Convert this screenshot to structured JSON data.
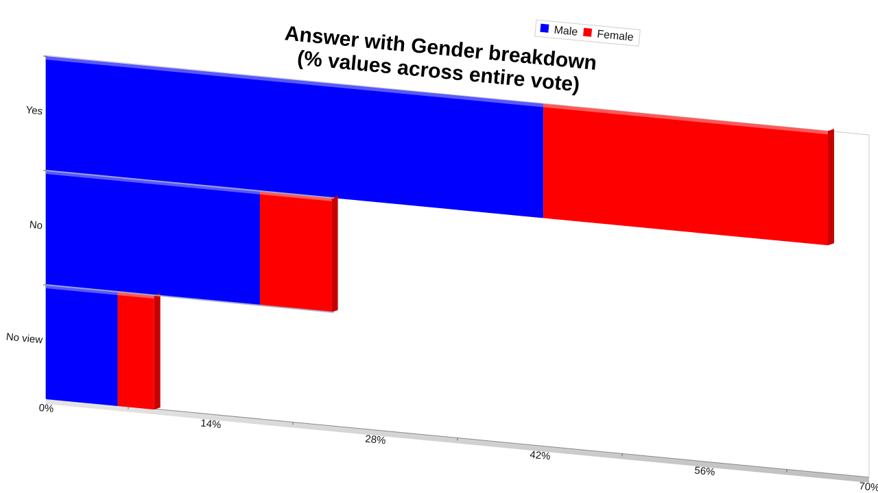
{
  "chart_data": {
    "type": "bar",
    "orientation": "horizontal",
    "stacked": true,
    "title_lines": [
      "Answer with Gender breakdown",
      "(% values across entire vote)"
    ],
    "categories": [
      "Yes",
      "No",
      "No view"
    ],
    "series": [
      {
        "name": "Male",
        "color": "#0000ff",
        "values": [
          42.3,
          18.2,
          6.1
        ]
      },
      {
        "name": "Female",
        "color": "#ff0000",
        "values": [
          24.2,
          6.1,
          3.1
        ]
      }
    ],
    "x_ticks": [
      "0%",
      "14%",
      "28%",
      "42%",
      "56%",
      "70%"
    ],
    "xlim": [
      0,
      70
    ],
    "legend_position": "top-right",
    "grid": false
  }
}
